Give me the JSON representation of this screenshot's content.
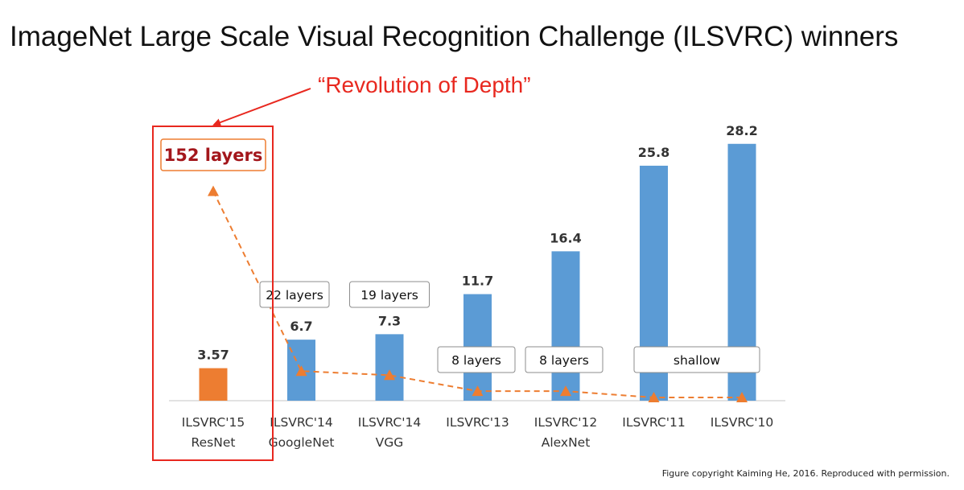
{
  "slide": {
    "title": "ImageNet Large Scale Visual Recognition Challenge (ILSVRC) winners",
    "annotation": "“Revolution of Depth”",
    "caption": "Figure copyright Kaiming He, 2016. Reproduced with permission."
  },
  "colors": {
    "bar_default": "#5b9bd5",
    "bar_highlight": "#ed7d31",
    "depth_line": "#ed7d31",
    "annotation": "#e8281f",
    "highlight_text": "#a3161b"
  },
  "chart_data": {
    "type": "bar",
    "title": "",
    "xlabel": "",
    "ylabel": "",
    "ylim": [
      0,
      30
    ],
    "grid": false,
    "legend": "none",
    "categories": [
      [
        "ILSVRC'15",
        "ResNet"
      ],
      [
        "ILSVRC'14",
        "GoogleNet"
      ],
      [
        "ILSVRC'14",
        "VGG"
      ],
      [
        "ILSVRC'13",
        ""
      ],
      [
        "ILSVRC'12",
        "AlexNet"
      ],
      [
        "ILSVRC'11",
        ""
      ],
      [
        "ILSVRC'10",
        ""
      ]
    ],
    "value_labels": [
      "3.57",
      "6.7",
      "7.3",
      "11.7",
      "16.4",
      "25.8",
      "28.2"
    ],
    "values": [
      3.57,
      6.7,
      7.3,
      11.7,
      16.4,
      25.8,
      28.2
    ],
    "highlight_index": 0,
    "depth_labels": [
      "152 layers",
      "22 layers",
      "19 layers",
      "8 layers",
      "8 layers",
      "shallow",
      ""
    ],
    "depth_series": {
      "marker": "triangle",
      "line": "dashed",
      "layers": [
        152,
        22,
        19,
        8,
        8,
        0,
        0
      ]
    }
  }
}
